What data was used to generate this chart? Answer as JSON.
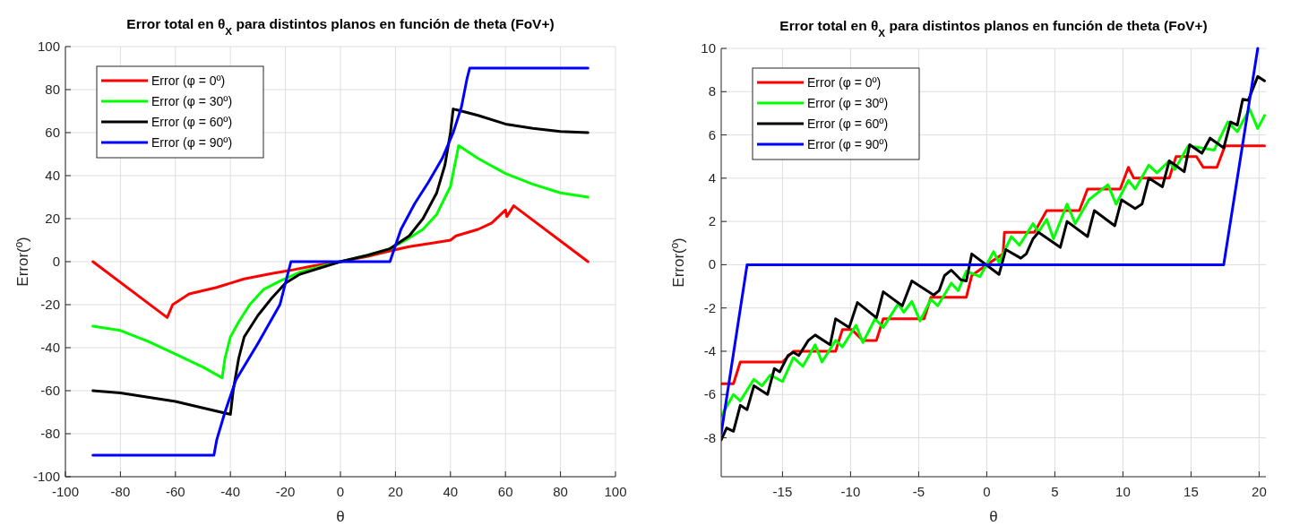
{
  "chart_data": [
    {
      "type": "line",
      "title": "Error total en θ$_{X}$ para distintos planos en función de theta (FoV+)",
      "xlabel": "θ",
      "ylabel": "Error(º)",
      "xlim": [
        -100,
        100
      ],
      "ylim": [
        -100,
        100
      ],
      "xticks": [
        -100,
        -80,
        -60,
        -40,
        -20,
        0,
        20,
        40,
        60,
        80,
        100
      ],
      "yticks": [
        -100,
        -80,
        -60,
        -40,
        -20,
        0,
        20,
        40,
        60,
        80,
        100
      ],
      "grid": true,
      "legend": "top left",
      "marker": "none",
      "line_style": "solid",
      "series": [
        {
          "name": "Error (φ = 0º)",
          "color": "#ff0000",
          "x": [
            -90,
            -63,
            -61,
            -55,
            -45,
            -35,
            -25,
            -18,
            -10,
            0,
            10,
            18,
            25,
            35,
            40,
            42,
            50,
            55,
            60,
            60.5,
            63,
            90
          ],
          "values": [
            0,
            -26,
            -20,
            -15,
            -12,
            -8,
            -5.5,
            -4,
            -2,
            0,
            2.5,
            5,
            7,
            9,
            10,
            12,
            15,
            18,
            24,
            21,
            26,
            0
          ]
        },
        {
          "name": "Error (φ = 30º)",
          "color": "#00ff00",
          "x": [
            -90,
            -80,
            -70,
            -60,
            -50,
            -43,
            -42,
            -40,
            -37,
            -33,
            -28,
            -22,
            -15,
            -5,
            0,
            10,
            18,
            25,
            30,
            35,
            40,
            43,
            50,
            60,
            70,
            80,
            90
          ],
          "values": [
            -30,
            -32,
            -37,
            -43,
            -49,
            -54,
            -45,
            -35,
            -28,
            -20,
            -13,
            -9,
            -5,
            -1.5,
            0,
            3,
            6,
            11,
            15,
            22,
            35,
            54,
            48,
            41,
            36,
            32,
            30
          ]
        },
        {
          "name": "Error (φ = 60º)",
          "color": "#000000",
          "x": [
            -90,
            -80,
            -70,
            -60,
            -50,
            -40,
            -39,
            -37,
            -35,
            -30,
            -25,
            -20,
            -15,
            -5,
            0,
            10,
            18,
            25,
            30,
            35,
            38,
            40,
            41,
            50,
            60,
            70,
            80,
            90
          ],
          "values": [
            -60,
            -61,
            -63,
            -65,
            -68,
            -71,
            -60,
            -45,
            -35,
            -25,
            -17,
            -10,
            -6,
            -2,
            0,
            3,
            6,
            12,
            20,
            32,
            45,
            60,
            71,
            68,
            64,
            62,
            60.5,
            60
          ]
        },
        {
          "name": "Error (φ = 90º)",
          "color": "#0000ff",
          "x": [
            -90,
            -46,
            -45,
            -42,
            -38,
            -30,
            -22,
            -18,
            18,
            22,
            27,
            32,
            37,
            41,
            44,
            46,
            47,
            90
          ],
          "values": [
            -90,
            -90,
            -83,
            -70,
            -55,
            -38,
            -20,
            0,
            0,
            15,
            27,
            37,
            48,
            60,
            72,
            85,
            90,
            90
          ]
        }
      ]
    },
    {
      "type": "line",
      "title": "Error total en θ$_{X}$ para distintos planos en función de theta (FoV+)",
      "xlabel": "θ",
      "ylabel": "Error(º)",
      "xlim": [
        -19.5,
        20.5
      ],
      "ylim": [
        -9.8,
        10
      ],
      "xticks": [
        -15,
        -10,
        -5,
        0,
        5,
        10,
        15,
        20
      ],
      "yticks": [
        -8,
        -6,
        -4,
        -2,
        0,
        2,
        4,
        6,
        8,
        10
      ],
      "grid": true,
      "legend": "top left",
      "marker": "none",
      "line_style": "solid",
      "series": [
        {
          "name": "Error (φ = 0º)",
          "color": "#ff0000",
          "x": [
            -19.5,
            -18.6,
            -18.1,
            -15,
            -14.2,
            -11.1,
            -10.6,
            -9.9,
            -9.1,
            -8.1,
            -7.6,
            -4.6,
            -4.1,
            -1.5,
            -1.1,
            0,
            1.2,
            1.3,
            3.5,
            4.4,
            6.8,
            7.4,
            9.8,
            10.4,
            10.8,
            13.4,
            13.9,
            15.4,
            15.9,
            16.9,
            17.5,
            20.4
          ],
          "values": [
            -5.5,
            -5.5,
            -4.5,
            -4.5,
            -4,
            -4,
            -3,
            -3,
            -3.5,
            -3.5,
            -2.5,
            -2.5,
            -1.5,
            -1.5,
            -0.5,
            0,
            0.5,
            1.5,
            1.5,
            2.5,
            2.5,
            3.5,
            3.5,
            4.5,
            4,
            4,
            5,
            5,
            4.5,
            4.5,
            5.5,
            5.5
          ]
        },
        {
          "name": "Error (φ = 30º)",
          "color": "#00ff00",
          "x": [
            -19.5,
            -18.6,
            -18.1,
            -17.1,
            -16.5,
            -15.9,
            -15,
            -14.2,
            -13.5,
            -12.6,
            -12.1,
            -11.1,
            -10.6,
            -9.6,
            -9.1,
            -8.2,
            -7.6,
            -6.5,
            -6.1,
            -5.5,
            -4.9,
            -4.1,
            -3.6,
            -2.6,
            -2.1,
            -1.5,
            -0.5,
            0.5,
            0.9,
            1.8,
            2.4,
            3.4,
            3.8,
            4.4,
            4.9,
            5.9,
            6.5,
            7.5,
            8.9,
            9.5,
            10.4,
            10.9,
            11.9,
            12.5,
            13.4,
            13.8,
            14.8,
            16.7,
            17.7,
            18.4,
            19.3,
            19.9,
            20.4
          ],
          "values": [
            -7,
            -6,
            -6.3,
            -5.3,
            -5.6,
            -5.1,
            -5.4,
            -4.3,
            -4.7,
            -3.7,
            -4.5,
            -3.5,
            -3.8,
            -2.8,
            -3.6,
            -2.5,
            -2.9,
            -1.8,
            -2.2,
            -1.7,
            -2.6,
            -1.6,
            -1.9,
            -0.85,
            -1.2,
            -0.3,
            -0.55,
            0.6,
            0.1,
            1.3,
            0.9,
            1.9,
            1.5,
            2.1,
            1.2,
            2.8,
            1.9,
            3,
            3.7,
            2.8,
            3.9,
            3.5,
            4.6,
            4.25,
            4.8,
            4.4,
            5.5,
            5.3,
            6.6,
            6.15,
            7.2,
            6.3,
            6.9
          ]
        },
        {
          "name": "Error (φ = 60º)",
          "color": "#000000",
          "x": [
            -19.5,
            -19.1,
            -18.6,
            -18.1,
            -17.6,
            -17.1,
            -16.1,
            -15.6,
            -15.2,
            -14.6,
            -14.2,
            -13.8,
            -13.1,
            -12.6,
            -11.5,
            -11.1,
            -10.1,
            -9.5,
            -8.1,
            -7.6,
            -6.2,
            -5.5,
            -3.9,
            -3.5,
            -3.1,
            -2.6,
            -1.9,
            -1.5,
            -1.1,
            0.9,
            1.4,
            2.5,
            2.9,
            3.4,
            3.8,
            5.4,
            5.9,
            7.4,
            7.9,
            9.4,
            9.9,
            10.9,
            11.4,
            11.9,
            12.9,
            13.4,
            14.5,
            14.9,
            15.8,
            16.4,
            17.4,
            17.9,
            18.4,
            18.8,
            19.2,
            19.9,
            20.4
          ],
          "values": [
            -8.1,
            -7.55,
            -7.7,
            -6.5,
            -6.7,
            -5.6,
            -6,
            -4.8,
            -4.95,
            -4.2,
            -4.05,
            -4.2,
            -3.5,
            -3.25,
            -3.7,
            -2.5,
            -2.9,
            -1.75,
            -2.45,
            -1.25,
            -1.9,
            -0.75,
            -1.4,
            -1.2,
            -0.5,
            -0.25,
            -0.7,
            -0.75,
            0.5,
            -0.45,
            0.7,
            0.3,
            0.5,
            1.2,
            1.5,
            0.8,
            2,
            1.3,
            2.5,
            1.8,
            3,
            2.6,
            2.8,
            4,
            3.6,
            4.8,
            4.3,
            5.55,
            5.15,
            5.85,
            5.4,
            6.6,
            6.45,
            7.65,
            7.6,
            8.7,
            8.5
          ]
        },
        {
          "name": "Error (φ = 90º)",
          "color": "#0000ff",
          "x": [
            -19.5,
            -17.6,
            17.4,
            19.9
          ],
          "values": [
            -7.8,
            0,
            0,
            10
          ]
        }
      ]
    }
  ]
}
